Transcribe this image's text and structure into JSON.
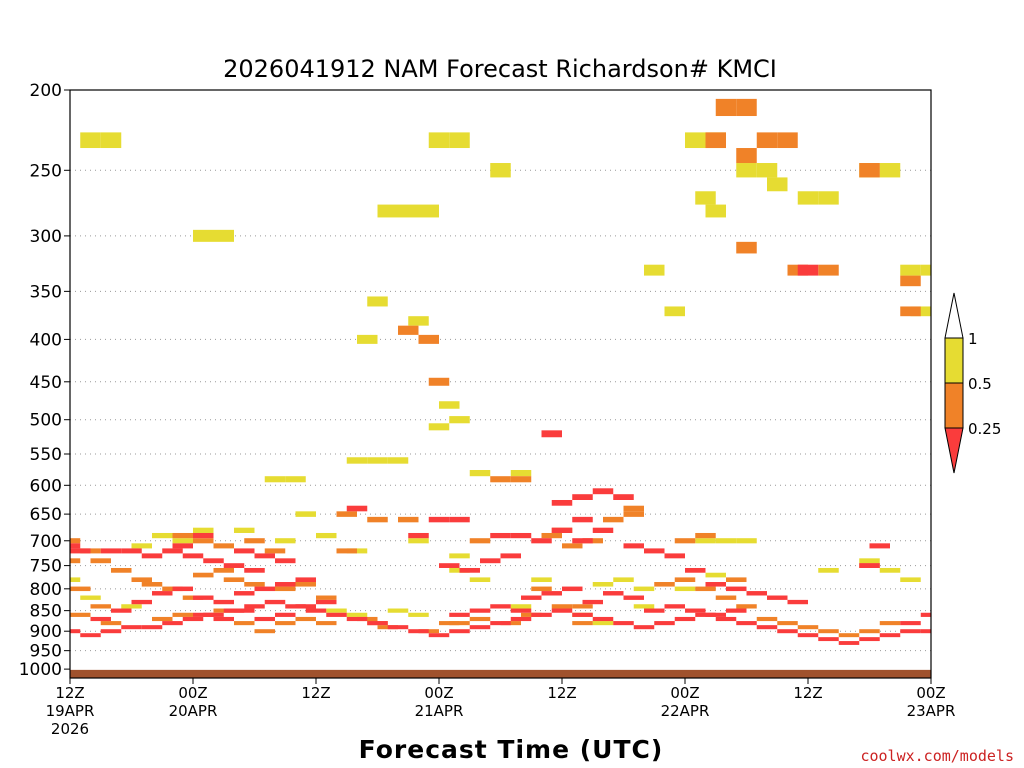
{
  "chart_data": {
    "type": "heatmap",
    "title": "2026041912 NAM Forecast Richardson# KMCI",
    "xlabel": "Forecast Time (UTC)",
    "ylabel": "",
    "y_axis_values": [
      200,
      250,
      300,
      350,
      400,
      450,
      500,
      550,
      600,
      650,
      700,
      750,
      800,
      850,
      900,
      950,
      1000
    ],
    "y_axis_range": [
      200,
      1025
    ],
    "y_axis_scale": "log-pressure",
    "x_axis_range_hours": [
      0,
      84
    ],
    "x_ticks": [
      {
        "hour": 0,
        "line1": "12Z",
        "line2": "19APR",
        "line3": "2026"
      },
      {
        "hour": 12,
        "line1": "00Z",
        "line2": "20APR",
        "line3": ""
      },
      {
        "hour": 24,
        "line1": "12Z",
        "line2": "",
        "line3": ""
      },
      {
        "hour": 36,
        "line1": "00Z",
        "line2": "21APR",
        "line3": ""
      },
      {
        "hour": 48,
        "line1": "12Z",
        "line2": "",
        "line3": ""
      },
      {
        "hour": 60,
        "line1": "00Z",
        "line2": "22APR",
        "line3": ""
      },
      {
        "hour": 72,
        "line1": "12Z",
        "line2": "",
        "line3": ""
      },
      {
        "hour": 84,
        "line1": "00Z",
        "line2": "23APR",
        "line3": ""
      }
    ],
    "grid": "dotted horizontal",
    "legend": {
      "placement": "right",
      "levels": [
        "1",
        "0.5",
        "0.25"
      ],
      "bins": [
        {
          "range": "> 1",
          "color": "#ffffff"
        },
        {
          "range": "0.5 - 1",
          "color": "#e6dc32"
        },
        {
          "range": "0.25 - 0.5",
          "color": "#f08228"
        },
        {
          "range": "< 0.25",
          "color": "#fa3c3c"
        }
      ]
    },
    "ground_color": "#a0522d",
    "ground_below_hPa": 1000,
    "cell_size": {
      "hours": 2,
      "hPa": 10
    },
    "series": [
      {
        "name": "0.5-1",
        "color": "#e6dc32",
        "cells": [
          [
            2,
            230
          ],
          [
            4,
            230
          ],
          [
            13,
            300
          ],
          [
            15,
            300
          ],
          [
            36,
            230
          ],
          [
            38,
            230
          ],
          [
            42,
            250
          ],
          [
            61,
            230
          ],
          [
            63,
            230
          ],
          [
            57,
            330
          ],
          [
            59,
            370
          ],
          [
            62,
            270
          ],
          [
            63,
            280
          ],
          [
            66,
            250
          ],
          [
            68,
            250
          ],
          [
            69,
            260
          ],
          [
            72,
            270
          ],
          [
            74,
            270
          ],
          [
            78,
            250
          ],
          [
            80,
            250
          ],
          [
            82,
            330
          ],
          [
            84,
            330
          ],
          [
            83,
            370
          ],
          [
            31,
            280
          ],
          [
            33,
            280
          ],
          [
            35,
            280
          ],
          [
            34,
            380
          ],
          [
            30,
            360
          ],
          [
            29,
            400
          ],
          [
            37,
            480
          ],
          [
            38,
            500
          ],
          [
            36,
            510
          ],
          [
            28,
            560
          ],
          [
            30,
            560
          ],
          [
            32,
            560
          ],
          [
            20,
            590
          ],
          [
            22,
            590
          ],
          [
            40,
            580
          ],
          [
            44,
            580
          ],
          [
            7,
            710
          ],
          [
            9,
            690
          ],
          [
            11,
            700
          ],
          [
            13,
            680
          ],
          [
            17,
            680
          ],
          [
            23,
            650
          ],
          [
            21,
            700
          ],
          [
            25,
            690
          ],
          [
            28,
            720
          ],
          [
            34,
            700
          ],
          [
            38,
            730
          ],
          [
            38,
            760
          ],
          [
            40,
            780
          ],
          [
            46,
            780
          ],
          [
            52,
            790
          ],
          [
            54,
            780
          ],
          [
            56,
            800
          ],
          [
            60,
            800
          ],
          [
            63,
            770
          ],
          [
            62,
            700
          ],
          [
            64,
            700
          ],
          [
            66,
            700
          ],
          [
            0,
            780
          ],
          [
            2,
            820
          ],
          [
            6,
            840
          ],
          [
            26,
            850
          ],
          [
            28,
            860
          ],
          [
            32,
            850
          ],
          [
            34,
            860
          ],
          [
            44,
            840
          ],
          [
            50,
            860
          ],
          [
            52,
            880
          ],
          [
            56,
            840
          ],
          [
            78,
            740
          ],
          [
            80,
            760
          ],
          [
            82,
            780
          ],
          [
            74,
            760
          ]
        ]
      },
      {
        "name": "0.25-0.5",
        "color": "#f08228",
        "cells": [
          [
            64,
            210
          ],
          [
            66,
            210
          ],
          [
            63,
            230
          ],
          [
            66,
            240
          ],
          [
            68,
            230
          ],
          [
            70,
            230
          ],
          [
            78,
            250
          ],
          [
            82,
            370
          ],
          [
            82,
            340
          ],
          [
            66,
            310
          ],
          [
            71,
            330
          ],
          [
            74,
            330
          ],
          [
            33,
            390
          ],
          [
            35,
            400
          ],
          [
            36,
            450
          ],
          [
            42,
            590
          ],
          [
            44,
            590
          ],
          [
            55,
            640
          ],
          [
            53,
            660
          ],
          [
            40,
            700
          ],
          [
            30,
            660
          ],
          [
            27,
            650
          ],
          [
            33,
            660
          ],
          [
            11,
            690
          ],
          [
            13,
            700
          ],
          [
            15,
            710
          ],
          [
            0,
            700
          ],
          [
            2,
            720
          ],
          [
            0,
            740
          ],
          [
            3,
            740
          ],
          [
            5,
            760
          ],
          [
            7,
            780
          ],
          [
            1,
            800
          ],
          [
            3,
            840
          ],
          [
            1,
            860
          ],
          [
            8,
            790
          ],
          [
            10,
            800
          ],
          [
            12,
            820
          ],
          [
            16,
            780
          ],
          [
            18,
            790
          ],
          [
            21,
            800
          ],
          [
            23,
            790
          ],
          [
            25,
            820
          ],
          [
            17,
            880
          ],
          [
            19,
            900
          ],
          [
            21,
            880
          ],
          [
            23,
            870
          ],
          [
            29,
            870
          ],
          [
            31,
            890
          ],
          [
            46,
            800
          ],
          [
            48,
            840
          ],
          [
            50,
            880
          ],
          [
            40,
            870
          ],
          [
            38,
            880
          ],
          [
            58,
            790
          ],
          [
            60,
            780
          ],
          [
            62,
            800
          ],
          [
            64,
            820
          ],
          [
            66,
            840
          ],
          [
            68,
            870
          ],
          [
            70,
            880
          ],
          [
            72,
            890
          ],
          [
            74,
            900
          ],
          [
            76,
            910
          ],
          [
            78,
            900
          ],
          [
            80,
            880
          ],
          [
            18,
            700
          ],
          [
            20,
            720
          ],
          [
            15,
            760
          ],
          [
            13,
            770
          ],
          [
            55,
            650
          ],
          [
            51,
            700
          ],
          [
            49,
            710
          ],
          [
            9,
            870
          ],
          [
            4,
            880
          ],
          [
            11,
            860
          ],
          [
            15,
            850
          ],
          [
            25,
            880
          ],
          [
            30,
            880
          ],
          [
            35,
            900
          ],
          [
            43,
            880
          ],
          [
            45,
            860
          ],
          [
            50,
            840
          ],
          [
            37,
            880
          ],
          [
            27,
            720
          ],
          [
            47,
            690
          ],
          [
            48,
            680
          ],
          [
            78,
            750
          ],
          [
            62,
            690
          ],
          [
            60,
            700
          ],
          [
            65,
            780
          ]
        ]
      },
      {
        "name": "<0.25",
        "color": "#fa3c3c",
        "cells": [
          [
            72,
            330
          ],
          [
            47,
            520
          ],
          [
            48,
            630
          ],
          [
            50,
            620
          ],
          [
            52,
            610
          ],
          [
            54,
            620
          ],
          [
            50,
            660
          ],
          [
            52,
            680
          ],
          [
            48,
            680
          ],
          [
            44,
            690
          ],
          [
            46,
            700
          ],
          [
            50,
            700
          ],
          [
            36,
            660
          ],
          [
            38,
            660
          ],
          [
            28,
            640
          ],
          [
            34,
            690
          ],
          [
            0,
            710
          ],
          [
            1,
            720
          ],
          [
            4,
            720
          ],
          [
            6,
            720
          ],
          [
            8,
            730
          ],
          [
            10,
            720
          ],
          [
            12,
            730
          ],
          [
            14,
            740
          ],
          [
            16,
            750
          ],
          [
            18,
            760
          ],
          [
            11,
            710
          ],
          [
            13,
            690
          ],
          [
            17,
            720
          ],
          [
            19,
            730
          ],
          [
            21,
            740
          ],
          [
            37,
            750
          ],
          [
            39,
            760
          ],
          [
            41,
            740
          ],
          [
            43,
            730
          ],
          [
            42,
            690
          ],
          [
            55,
            710
          ],
          [
            57,
            720
          ],
          [
            59,
            730
          ],
          [
            61,
            760
          ],
          [
            63,
            790
          ],
          [
            65,
            800
          ],
          [
            67,
            810
          ],
          [
            69,
            820
          ],
          [
            71,
            830
          ],
          [
            79,
            710
          ],
          [
            78,
            750
          ],
          [
            84,
            860
          ],
          [
            82,
            880
          ],
          [
            0,
            900
          ],
          [
            2,
            910
          ],
          [
            4,
            900
          ],
          [
            6,
            890
          ],
          [
            8,
            890
          ],
          [
            10,
            880
          ],
          [
            12,
            870
          ],
          [
            14,
            860
          ],
          [
            16,
            850
          ],
          [
            18,
            840
          ],
          [
            20,
            830
          ],
          [
            22,
            840
          ],
          [
            24,
            850
          ],
          [
            26,
            860
          ],
          [
            28,
            870
          ],
          [
            30,
            880
          ],
          [
            32,
            890
          ],
          [
            34,
            900
          ],
          [
            36,
            910
          ],
          [
            38,
            900
          ],
          [
            40,
            890
          ],
          [
            42,
            880
          ],
          [
            44,
            870
          ],
          [
            46,
            860
          ],
          [
            48,
            850
          ],
          [
            50,
            860
          ],
          [
            52,
            870
          ],
          [
            54,
            880
          ],
          [
            56,
            890
          ],
          [
            58,
            880
          ],
          [
            60,
            870
          ],
          [
            62,
            860
          ],
          [
            64,
            870
          ],
          [
            66,
            880
          ],
          [
            68,
            890
          ],
          [
            70,
            900
          ],
          [
            72,
            910
          ],
          [
            74,
            920
          ],
          [
            76,
            930
          ],
          [
            78,
            920
          ],
          [
            80,
            910
          ],
          [
            82,
            900
          ],
          [
            84,
            900
          ],
          [
            11,
            800
          ],
          [
            13,
            820
          ],
          [
            15,
            830
          ],
          [
            17,
            810
          ],
          [
            19,
            800
          ],
          [
            21,
            790
          ],
          [
            23,
            780
          ],
          [
            17,
            850
          ],
          [
            19,
            870
          ],
          [
            21,
            860
          ],
          [
            23,
            840
          ],
          [
            25,
            830
          ],
          [
            15,
            870
          ],
          [
            13,
            860
          ],
          [
            9,
            810
          ],
          [
            7,
            830
          ],
          [
            5,
            850
          ],
          [
            3,
            870
          ],
          [
            45,
            820
          ],
          [
            47,
            810
          ],
          [
            49,
            800
          ],
          [
            51,
            830
          ],
          [
            53,
            810
          ],
          [
            55,
            820
          ],
          [
            57,
            850
          ],
          [
            59,
            840
          ],
          [
            61,
            850
          ],
          [
            63,
            860
          ],
          [
            65,
            850
          ],
          [
            40,
            850
          ],
          [
            42,
            840
          ],
          [
            44,
            850
          ],
          [
            38,
            860
          ]
        ]
      }
    ]
  },
  "credit": "coolwx.com/models"
}
